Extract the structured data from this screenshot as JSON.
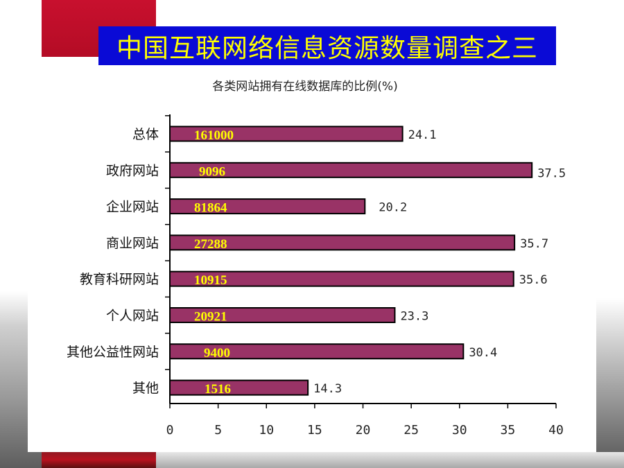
{
  "title": "中国互联网络信息资源数量调查之三",
  "colors": {
    "banner_bg": "#0a0ad6",
    "title_text": "#ffff00",
    "bar_fill": "#993366",
    "count_text": "#ffff00"
  },
  "chart_data": {
    "type": "bar",
    "orientation": "horizontal",
    "title": "各类网站拥有在线数据库的比例(%)",
    "categories": [
      "总体",
      "政府网站",
      "企业网站",
      "商业网站",
      "教育科研网站",
      "个人网站",
      "其他公益性网站",
      "其他"
    ],
    "values": [
      24.1,
      37.5,
      20.2,
      35.7,
      35.6,
      23.3,
      30.4,
      14.3
    ],
    "value_labels": [
      "24.1",
      "37.5",
      "20.2",
      "35.7",
      "35.6",
      "23.3",
      "30.4",
      "14.3"
    ],
    "bar_annotations": [
      "161000",
      "9096",
      "81864",
      "27288",
      "10915",
      "20921",
      "9400",
      "1516"
    ],
    "xlim": [
      0,
      40
    ],
    "xticks": [
      "0",
      "5",
      "10",
      "15",
      "20",
      "25",
      "30",
      "35",
      "40"
    ],
    "grid": false,
    "legend": "none"
  }
}
